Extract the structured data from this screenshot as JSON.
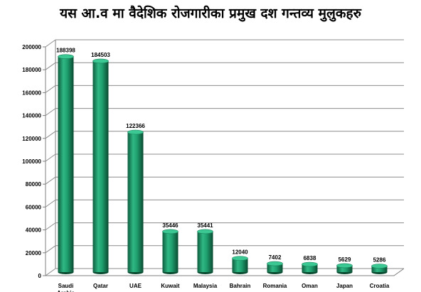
{
  "chart_data": {
    "type": "bar",
    "title": "यस आ.व मा वैदेशिक रोजगारीका प्रमुख दश गन्तव्य मुलुकहरु",
    "categories": [
      "Saudi Arabia",
      "Qatar",
      "UAE",
      "Kuwait",
      "Malaysia",
      "Bahrain",
      "Romania",
      "Oman",
      "Japan",
      "Croatia"
    ],
    "values": [
      188398,
      184503,
      122366,
      35446,
      35441,
      12040,
      7402,
      6838,
      5629,
      5286
    ],
    "ylim": [
      0,
      200000
    ],
    "yticks": [
      0,
      20000,
      40000,
      60000,
      80000,
      100000,
      120000,
      140000,
      160000,
      180000,
      200000
    ],
    "xlabel": "",
    "ylabel": "",
    "grid": true,
    "legend": "none",
    "bar_color": "#1f9e6e"
  }
}
